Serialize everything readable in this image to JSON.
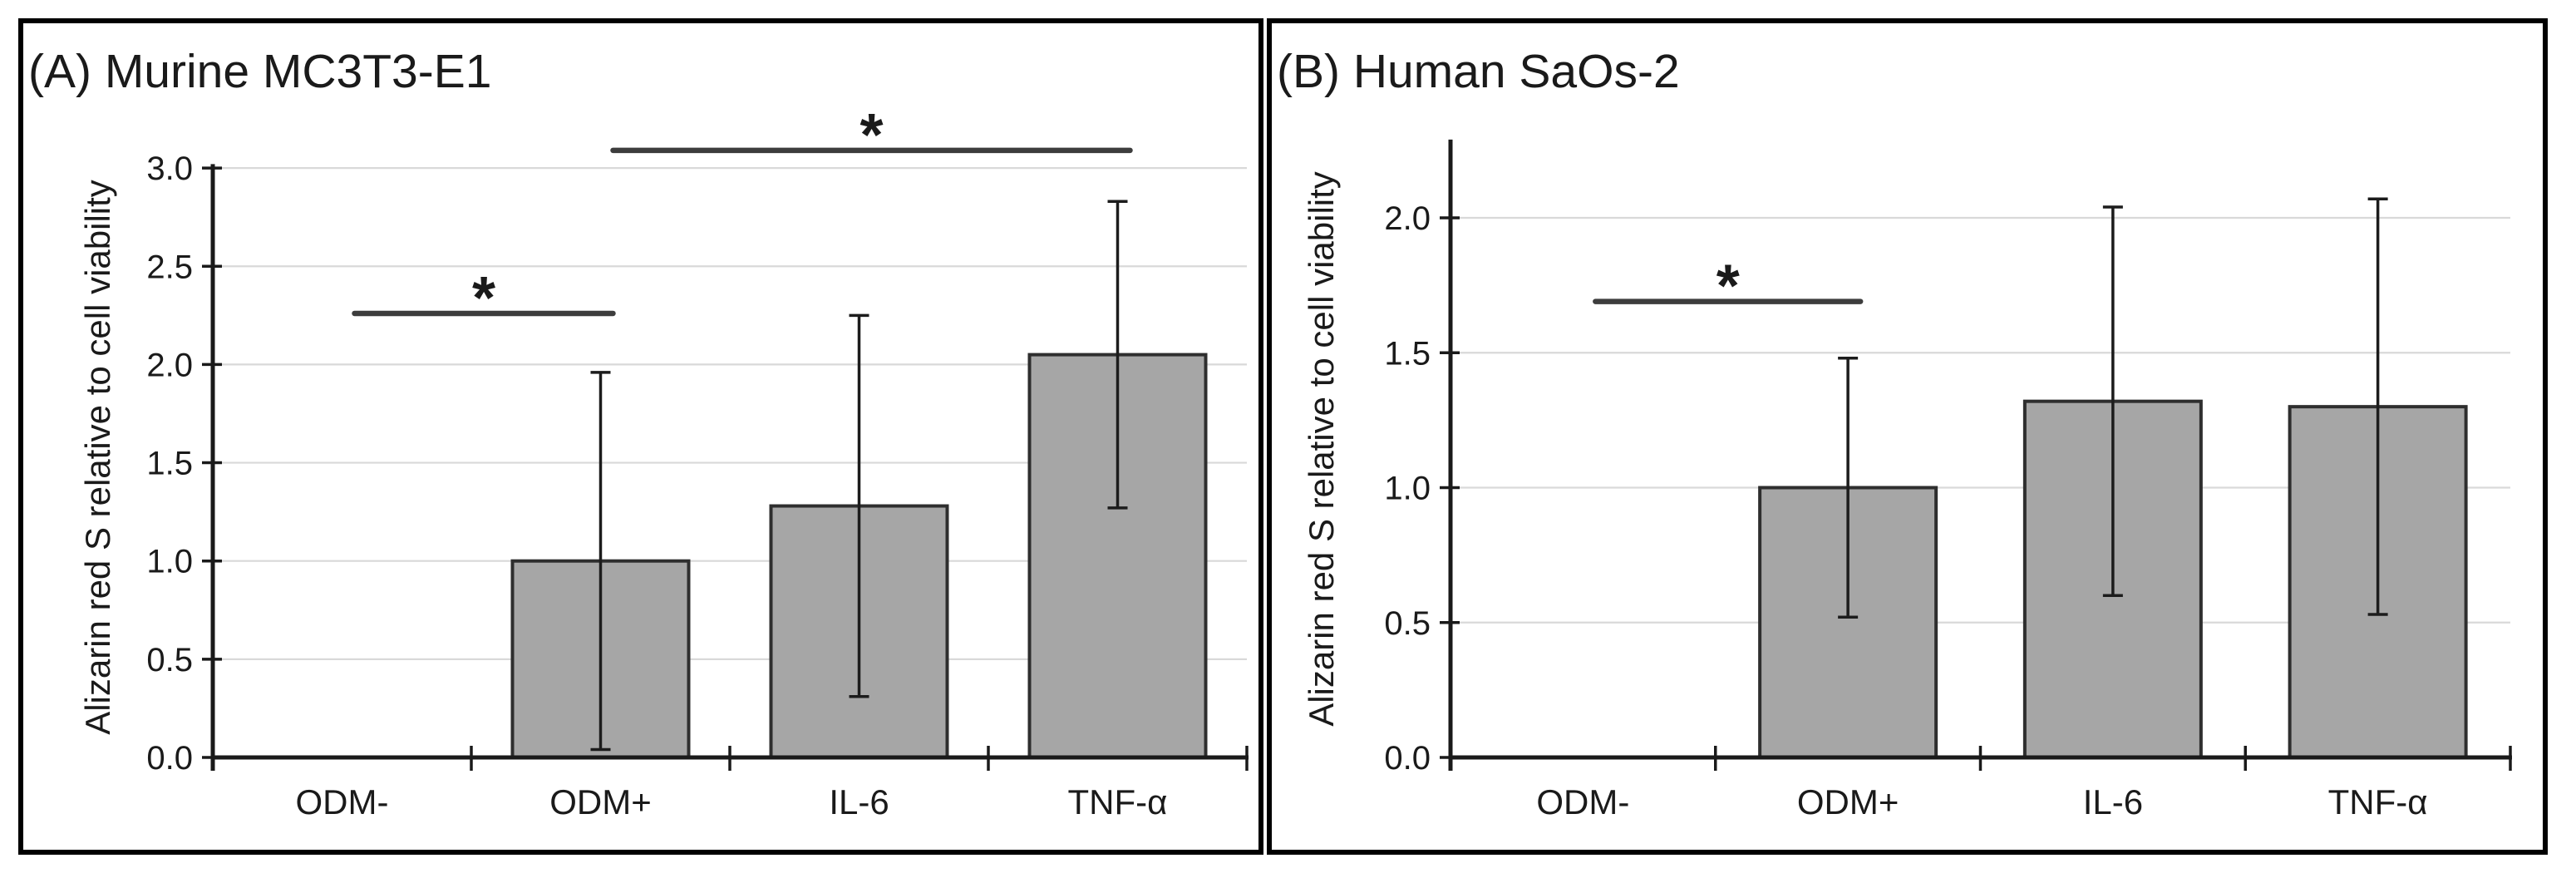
{
  "figure": {
    "background": "#ffffff",
    "panel_border_color": "#000000",
    "bar_fill": "#a6a6a6",
    "bar_border": "#2e2e2e",
    "gridline_color": "#d9d9d9",
    "axis_color": "#1a1a1a",
    "error_bar_color": "#1c1c1c",
    "significance_color": "#3d3d3d"
  },
  "chart_data": [
    {
      "type": "bar",
      "title": "(A) Murine MC3T3-E1",
      "ylabel": "Alizarin red S relative to cell viability",
      "xlabel": "",
      "categories": [
        "ODM-",
        "ODM+",
        "IL-6",
        "TNF-α"
      ],
      "values": [
        0,
        1.0,
        1.28,
        2.05
      ],
      "errors": [
        0,
        0.96,
        0.97,
        0.78
      ],
      "yticks": [
        {
          "value": 0.0,
          "label": "0.0"
        },
        {
          "value": 0.5,
          "label": "0.5"
        },
        {
          "value": 1.0,
          "label": "1.0"
        },
        {
          "value": 1.5,
          "label": "1.5"
        },
        {
          "value": 2.0,
          "label": "2.0"
        },
        {
          "value": 2.5,
          "label": "2.5"
        },
        {
          "value": 3.0,
          "label": "3.0"
        }
      ],
      "ylim": [
        0,
        3.02
      ],
      "grid": true,
      "legend": "none",
      "significance": [
        {
          "from": 0,
          "to": 1,
          "y": 2.26,
          "label": "*"
        },
        {
          "from": 1,
          "to": 3,
          "y": 3.09,
          "label": "*"
        }
      ]
    },
    {
      "type": "bar",
      "title": "(B) Human SaOs-2",
      "ylabel": "Alizarin red S relative to cell viability",
      "xlabel": "",
      "categories": [
        "ODM-",
        "ODM+",
        "IL-6",
        "TNF-α"
      ],
      "values": [
        0,
        1.0,
        1.32,
        1.3
      ],
      "errors": [
        0,
        0.48,
        0.72,
        0.77
      ],
      "yticks": [
        {
          "value": 0.0,
          "label": "0.0"
        },
        {
          "value": 0.5,
          "label": "0.5"
        },
        {
          "value": 1.0,
          "label": "1.0"
        },
        {
          "value": 1.5,
          "label": "1.5"
        },
        {
          "value": 2.0,
          "label": "2.0"
        }
      ],
      "ylim": [
        0,
        2.29
      ],
      "grid": true,
      "legend": "none",
      "significance": [
        {
          "from": 0,
          "to": 1,
          "y": 1.69,
          "label": "*"
        }
      ]
    }
  ]
}
